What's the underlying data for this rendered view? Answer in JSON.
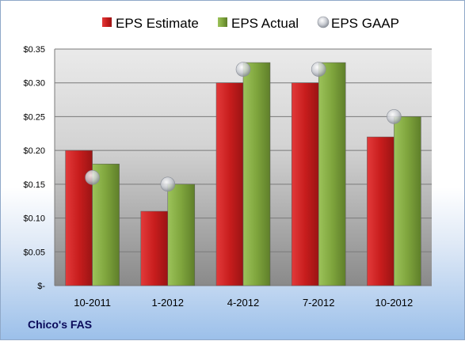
{
  "chart_data": {
    "type": "bar",
    "categories": [
      "10-2011",
      "1-2012",
      "4-2012",
      "7-2012",
      "10-2012"
    ],
    "series": [
      {
        "name": "EPS Estimate",
        "kind": "bar",
        "color": "#cc1f1f",
        "values": [
          0.2,
          0.11,
          0.3,
          0.3,
          0.22
        ]
      },
      {
        "name": "EPS Actual",
        "kind": "bar",
        "color": "#7ea33b",
        "values": [
          0.18,
          0.15,
          0.33,
          0.33,
          0.25
        ]
      },
      {
        "name": "EPS GAAP",
        "kind": "marker",
        "color": "#b8bcc4",
        "values": [
          0.16,
          0.15,
          0.32,
          0.32,
          0.25
        ]
      }
    ],
    "ylim": [
      0,
      0.35
    ],
    "yticks": [
      0,
      0.05,
      0.1,
      0.15,
      0.2,
      0.25,
      0.3,
      0.35
    ],
    "ytick_labels": [
      "$-",
      "$0.05",
      "$0.10",
      "$0.15",
      "$0.20",
      "$0.25",
      "$0.30",
      "$0.35"
    ],
    "grid": true,
    "legend_position": "top",
    "company": "Chico's FAS"
  }
}
